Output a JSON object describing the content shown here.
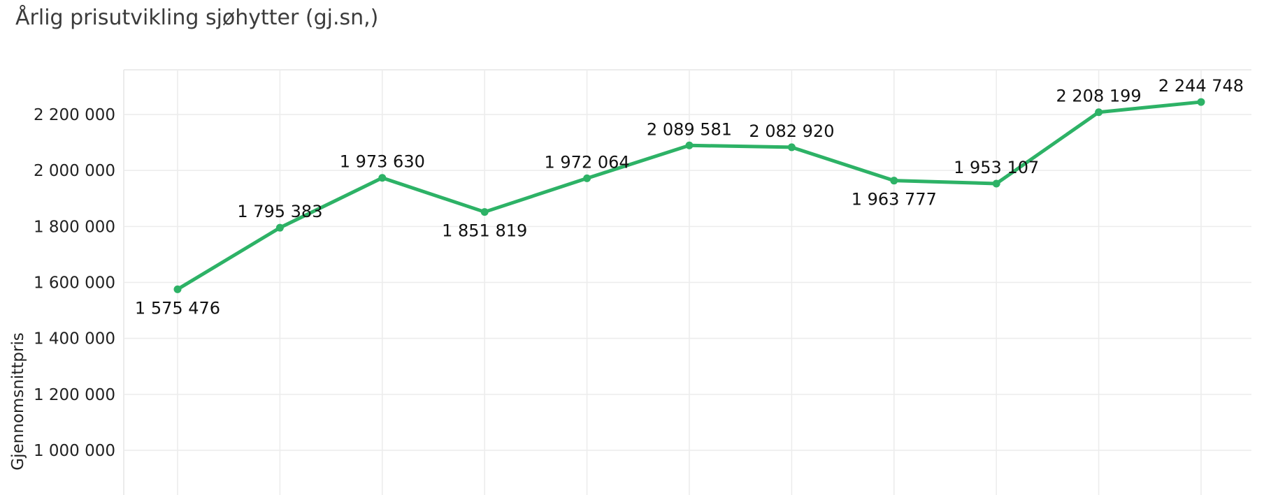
{
  "chart_data": {
    "type": "line",
    "title": "Årlig prisutvikling sjøhytter (gj.sn,)",
    "xlabel": "",
    "ylabel": "Gjennomsnittpris",
    "color": "#2db266",
    "ylim": [
      900000,
      2350000
    ],
    "yticks": [
      1000000,
      1200000,
      1400000,
      1600000,
      1800000,
      2000000,
      2200000
    ],
    "ytick_labels": [
      "1 000 000",
      "1 200 000",
      "1 400 000",
      "1 600 000",
      "1 800 000",
      "2 000 000",
      "2 200 000"
    ],
    "grid": true,
    "series": [
      {
        "values": [
          1575476,
          1795383,
          1973630,
          1851819,
          1972064,
          2089581,
          2082920,
          1963777,
          1953107,
          2208199,
          2244748
        ],
        "labels": [
          "1 575 476",
          "1 795 383",
          "1 973 630",
          "1 851 819",
          "1 972 064",
          "2 089 581",
          "2 082 920",
          "1 963 777",
          "1 953 107",
          "2 208 199",
          "2 244 748"
        ],
        "label_pos": [
          "below",
          "above",
          "above",
          "below",
          "above",
          "above",
          "above",
          "below",
          "above",
          "above",
          "above"
        ]
      }
    ]
  }
}
